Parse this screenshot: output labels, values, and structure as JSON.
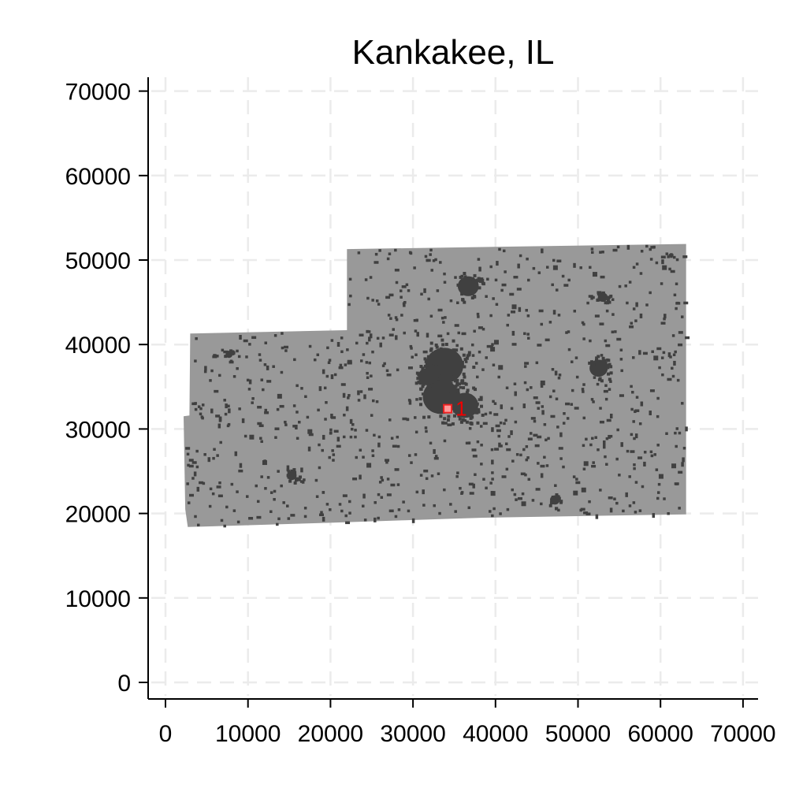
{
  "chart_data": {
    "type": "scatter",
    "title": "Kankakee, IL",
    "xlabel": "",
    "ylabel": "",
    "xlim": [
      0,
      70000
    ],
    "ylim": [
      0,
      70000
    ],
    "x_ticks": [
      0,
      10000,
      20000,
      30000,
      40000,
      50000,
      60000,
      70000
    ],
    "y_ticks": [
      0,
      10000,
      20000,
      30000,
      40000,
      50000,
      60000,
      70000
    ],
    "x_tick_labels": [
      "0",
      "10000",
      "20000",
      "30000",
      "40000",
      "50000",
      "60000",
      "70000"
    ],
    "y_tick_labels": [
      "0",
      "10000",
      "20000",
      "30000",
      "40000",
      "50000",
      "60000",
      "70000"
    ],
    "grid": true,
    "grid_style": "dashed",
    "county_outline": [
      [
        22000,
        51300
      ],
      [
        63100,
        51900
      ],
      [
        63100,
        19900
      ],
      [
        38500,
        19500
      ],
      [
        29000,
        19200
      ],
      [
        20000,
        18900
      ],
      [
        2700,
        18400
      ],
      [
        2400,
        20500
      ],
      [
        2200,
        31500
      ],
      [
        2900,
        31600
      ],
      [
        3000,
        41300
      ],
      [
        22000,
        41700
      ]
    ],
    "developed_clusters": [
      {
        "x": 33800,
        "y": 37500,
        "r": 2700
      },
      {
        "x": 33400,
        "y": 33800,
        "r": 2600
      },
      {
        "x": 36300,
        "y": 32800,
        "r": 1900
      },
      {
        "x": 31700,
        "y": 36200,
        "r": 1300
      },
      {
        "x": 36700,
        "y": 46900,
        "r": 1500
      },
      {
        "x": 52500,
        "y": 37200,
        "r": 1300
      },
      {
        "x": 53000,
        "y": 45600,
        "r": 700
      },
      {
        "x": 15300,
        "y": 24500,
        "r": 700
      },
      {
        "x": 47200,
        "y": 21600,
        "r": 700
      },
      {
        "x": 7700,
        "y": 38800,
        "r": 500
      }
    ],
    "points": [
      {
        "x": 34200,
        "y": 32400,
        "label": "1"
      }
    ],
    "colors": {
      "county": "#999999",
      "developed": "#404040",
      "marker_fill": "#ff9999",
      "marker_edge": "#ee2222",
      "label": "#ee0000",
      "grid": "#ebebeb"
    }
  }
}
